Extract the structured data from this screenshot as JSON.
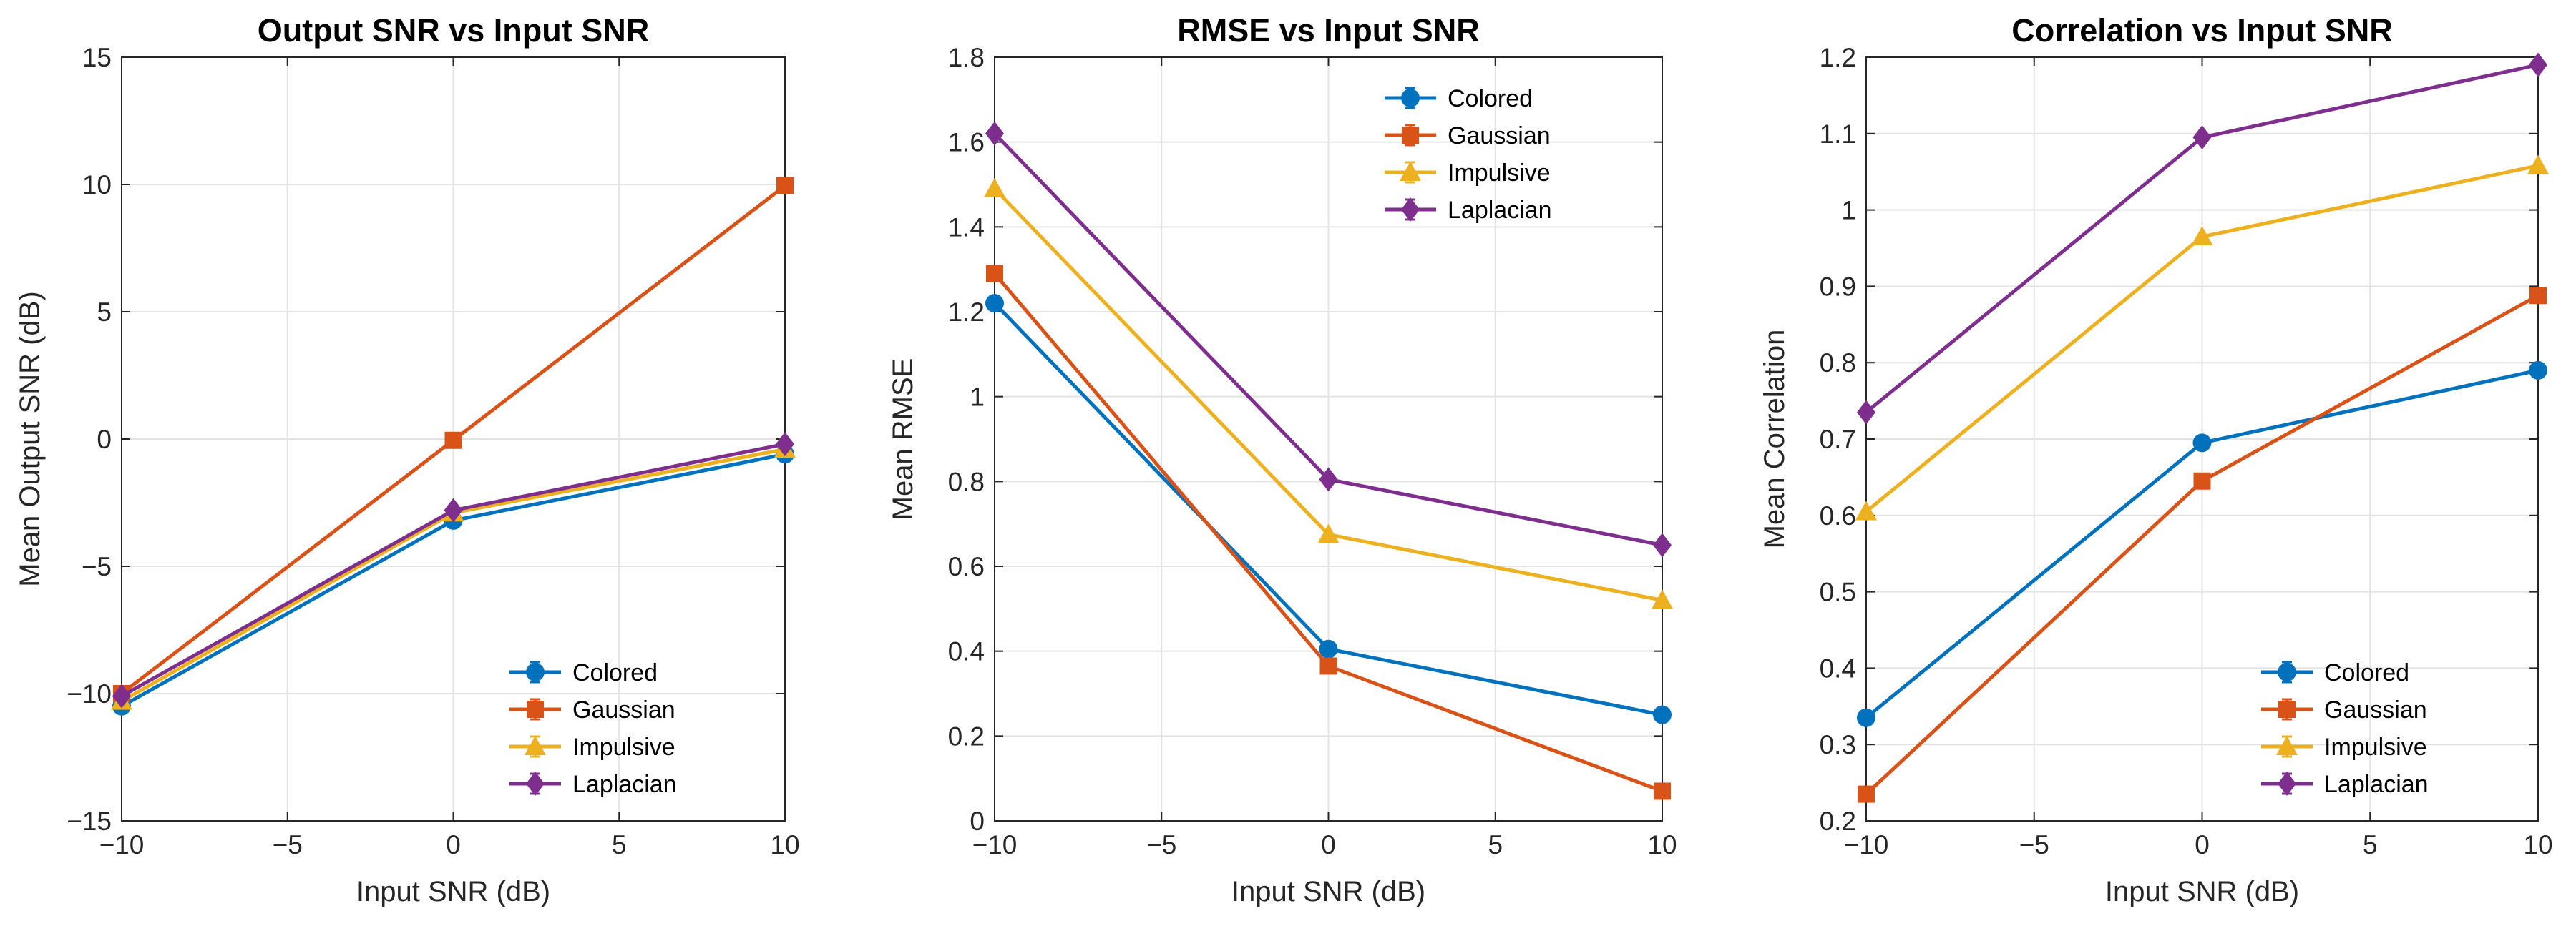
{
  "colors": {
    "Colored": "#0072BD",
    "Gaussian": "#D95319",
    "Impulsive": "#EDB120",
    "Laplacian": "#7E2F8E"
  },
  "markers": {
    "Colored": "circle",
    "Gaussian": "square",
    "Impulsive": "triangle",
    "Laplacian": "diamond"
  },
  "chart_data": [
    {
      "type": "line",
      "title": "Output SNR vs Input SNR",
      "xlabel": "Input SNR (dB)",
      "ylabel": "Mean Output SNR (dB)",
      "x": [
        -10,
        0,
        10
      ],
      "xlim": [
        -10,
        10
      ],
      "ylim": [
        -15,
        15
      ],
      "xticks": [
        -10,
        -5,
        0,
        5,
        10
      ],
      "yticks": [
        -15,
        -10,
        -5,
        0,
        5,
        10,
        15
      ],
      "xtick_labels": [
        "−10",
        "−5",
        "0",
        "5",
        "10"
      ],
      "ytick_labels": [
        "−15",
        "−10",
        "−5",
        "0",
        "5",
        "10",
        "15"
      ],
      "grid": true,
      "legend": "bottom-right",
      "series": [
        {
          "name": "Colored",
          "values": [
            -10.5,
            -3.2,
            -0.6
          ]
        },
        {
          "name": "Gaussian",
          "values": [
            -10.0,
            -0.05,
            9.95
          ]
        },
        {
          "name": "Impulsive",
          "values": [
            -10.3,
            -2.9,
            -0.4
          ]
        },
        {
          "name": "Laplacian",
          "values": [
            -10.1,
            -2.8,
            -0.2
          ]
        }
      ]
    },
    {
      "type": "line",
      "title": "RMSE vs Input SNR",
      "xlabel": "Input SNR (dB)",
      "ylabel": "Mean RMSE",
      "x": [
        -10,
        0,
        10
      ],
      "xlim": [
        -10,
        10
      ],
      "ylim": [
        0,
        1.8
      ],
      "xticks": [
        -10,
        -5,
        0,
        5,
        10
      ],
      "yticks": [
        0,
        0.2,
        0.4,
        0.6,
        0.8,
        1,
        1.2,
        1.4,
        1.6,
        1.8
      ],
      "xtick_labels": [
        "−10",
        "−5",
        "0",
        "5",
        "10"
      ],
      "ytick_labels": [
        "0",
        "0.2",
        "0.4",
        "0.6",
        "0.8",
        "1",
        "1.2",
        "1.4",
        "1.6",
        "1.8"
      ],
      "grid": true,
      "legend": "top-right",
      "series": [
        {
          "name": "Colored",
          "values": [
            1.22,
            0.405,
            0.25
          ]
        },
        {
          "name": "Gaussian",
          "values": [
            1.29,
            0.365,
            0.07
          ]
        },
        {
          "name": "Impulsive",
          "values": [
            1.49,
            0.675,
            0.52
          ]
        },
        {
          "name": "Laplacian",
          "values": [
            1.62,
            0.805,
            0.65
          ]
        }
      ]
    },
    {
      "type": "line",
      "title": "Correlation vs Input SNR",
      "xlabel": "Input SNR (dB)",
      "ylabel": "Mean Correlation",
      "x": [
        -10,
        0,
        10
      ],
      "xlim": [
        -10,
        10
      ],
      "ylim": [
        0.2,
        1.2
      ],
      "xticks": [
        -10,
        -5,
        0,
        5,
        10
      ],
      "yticks": [
        0.2,
        0.3,
        0.4,
        0.5,
        0.6,
        0.7,
        0.8,
        0.9,
        1,
        1.1,
        1.2
      ],
      "xtick_labels": [
        "−10",
        "−5",
        "0",
        "5",
        "10"
      ],
      "ytick_labels": [
        "0.2",
        "0.3",
        "0.4",
        "0.5",
        "0.6",
        "0.7",
        "0.8",
        "0.9",
        "1",
        "1.1",
        "1.2"
      ],
      "grid": true,
      "legend": "bottom-right",
      "series": [
        {
          "name": "Colored",
          "values": [
            0.335,
            0.695,
            0.79
          ]
        },
        {
          "name": "Gaussian",
          "values": [
            0.235,
            0.645,
            0.888
          ]
        },
        {
          "name": "Impulsive",
          "values": [
            0.605,
            0.965,
            1.058
          ]
        },
        {
          "name": "Laplacian",
          "values": [
            0.735,
            1.095,
            1.19
          ]
        }
      ]
    }
  ]
}
